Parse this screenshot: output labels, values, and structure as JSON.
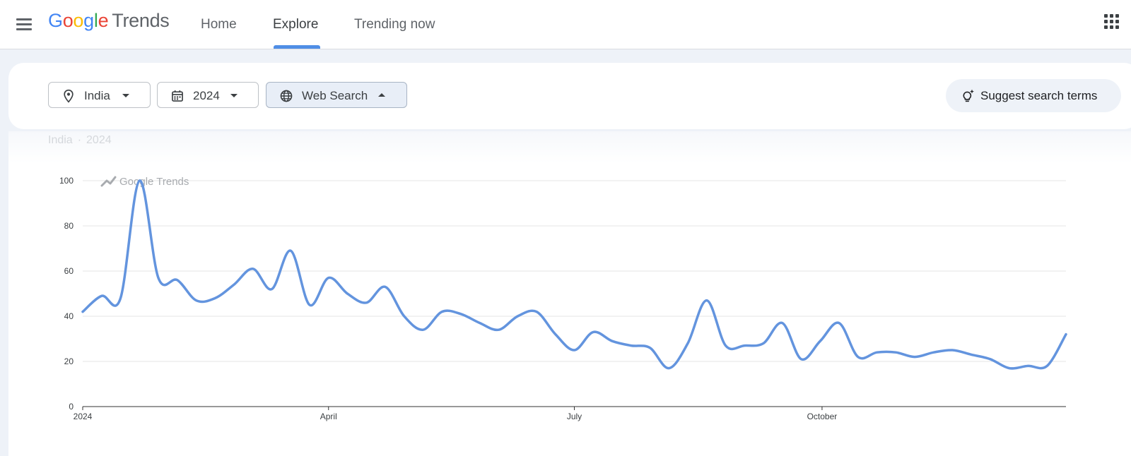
{
  "header": {
    "logo": {
      "letters": [
        {
          "ch": "G",
          "color": "#4285F4"
        },
        {
          "ch": "o",
          "color": "#EA4335"
        },
        {
          "ch": "o",
          "color": "#FBBC05"
        },
        {
          "ch": "g",
          "color": "#4285F4"
        },
        {
          "ch": "l",
          "color": "#34A853"
        },
        {
          "ch": "e",
          "color": "#EA4335"
        }
      ],
      "product": "Trends"
    },
    "nav": [
      {
        "label": "Home"
      },
      {
        "label": "Explore",
        "active": true
      },
      {
        "label": "Trending now"
      }
    ],
    "menu_icon": "hamburger-menu-icon",
    "apps_icon": "apps-grid-icon"
  },
  "filters": {
    "location": {
      "value": "India",
      "icon": "location-pin-icon"
    },
    "period": {
      "value": "2024",
      "icon": "calendar-icon"
    },
    "property": {
      "value": "Web Search",
      "icon": "globe-icon",
      "expanded": true
    },
    "suggest_label": "Suggest search terms"
  },
  "summary": {
    "location": "India",
    "separator": "·",
    "period": "2024"
  },
  "chart_data": {
    "type": "line",
    "watermark": "Google Trends",
    "y_ticks": [
      "0",
      "20",
      "40",
      "60",
      "80",
      "100"
    ],
    "x_ticks": [
      {
        "label": "2024",
        "week": 0
      },
      {
        "label": "April",
        "week": 13
      },
      {
        "label": "July",
        "week": 26
      },
      {
        "label": "October",
        "week": 39.1
      }
    ],
    "ylim": [
      0,
      100
    ],
    "grid": true,
    "line_color": "#6394de",
    "series": [
      {
        "x": [
          0,
          1,
          2,
          3,
          4,
          5,
          6,
          7,
          8,
          9,
          10,
          11,
          12,
          13,
          14,
          15,
          16,
          17,
          18,
          19,
          20,
          21,
          22,
          23,
          24,
          25,
          26,
          27,
          28,
          29,
          30,
          31,
          32,
          33,
          34,
          35,
          36,
          37,
          38,
          39,
          40,
          41,
          42,
          43,
          44,
          45,
          46,
          47,
          48,
          49,
          50,
          51,
          52
        ],
        "values": [
          42,
          49,
          48,
          100,
          57,
          56,
          47,
          48,
          54,
          61,
          52,
          69,
          45,
          57,
          50,
          46,
          53,
          40,
          34,
          42,
          41,
          37,
          34,
          40,
          42,
          32,
          25,
          33,
          29,
          27,
          26,
          17,
          28,
          47,
          27,
          27,
          28,
          37,
          21,
          29,
          37,
          22,
          24,
          24,
          22,
          24,
          25,
          23,
          21,
          17,
          18,
          18,
          32
        ]
      }
    ]
  }
}
